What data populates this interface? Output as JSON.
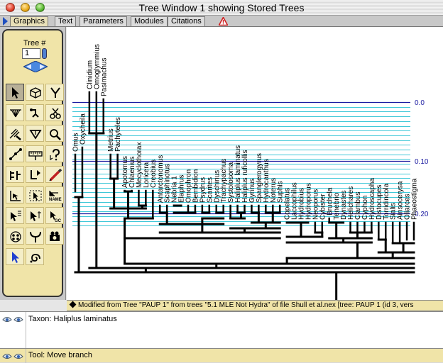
{
  "window": {
    "title": "Tree Window 1 showing Stored Trees"
  },
  "tabs": [
    {
      "label": "Graphics",
      "active": true
    },
    {
      "label": "Text",
      "active": false
    },
    {
      "label": "Parameters",
      "active": false
    },
    {
      "label": "Modules",
      "active": false
    },
    {
      "label": "Citations",
      "active": false
    }
  ],
  "palette": {
    "tree_number_label": "Tree #",
    "tree_number_value": "1",
    "tools": [
      "arrow-icon",
      "cube-icon",
      "fork-icon",
      "broom-icon",
      "reroot-icon",
      "scissors-icon",
      "brush-icon",
      "triangle-icon",
      "magnifier-icon",
      "nodes-icon",
      "ruler-icon",
      "query-icon",
      "ladder-icon",
      "flip-icon",
      "pencil-icon",
      "tree-arrow-icon",
      "selection-icon",
      "name-icon",
      "name-tag-icon",
      "pointer-cut-icon",
      "gc-icon",
      "cluster-icon",
      "branch-icon",
      "camera-icon",
      "cursor-blue-icon",
      "spiral-icon"
    ]
  },
  "scale": {
    "labels": [
      "0.0",
      "0.10",
      "0.20"
    ]
  },
  "taxa": [
    "Omus",
    "Oxycheila",
    "Clinidium",
    "Omoglymmius",
    "Pasimachus",
    "Metrius",
    "Pachyteles",
    "Apotomus",
    "Chlaenius",
    "Mecyclothorax",
    "Loricera",
    "Creobius",
    "Antarctonomus",
    "Scaphinotus",
    "Nebria 1",
    "Elaphrus",
    "Omophron",
    "Bembidion",
    "Psydrus",
    "Scarites",
    "Dyschirius",
    "Trachypachus",
    "Systolosoma",
    "Haliplus laminatus",
    "Haliplus ruficollis",
    "Gyrinus",
    "Spanglerogyrus",
    "Hydrocanthus",
    "Noterus",
    "Suphis",
    "Copelatus",
    "Laccophilus",
    "Hydrobius",
    "Hydroporus",
    "Neoporus",
    "Cybister",
    "Bruchela",
    "Tenebrio",
    "Dynastes",
    "Helichares",
    "Clambus",
    "Cyphon",
    "Hydroscapha",
    "Distocupes",
    "Torridincola",
    "Sialis",
    "Ainsocerysa",
    "Oliarces",
    "Phaeostigma"
  ],
  "info_bar": {
    "text": "Modified from Tree \"PAUP 1\" from trees \"5.1 MLE Not Hydra\" of file Shull et al.nex   [tree: PAUP 1 (id 3, vers"
  },
  "taxon_panel": {
    "text": "Taxon: Haliplus laminatus"
  },
  "tool_panel": {
    "text": "Tool: Move branch"
  },
  "colors": {
    "gridline": "#40c8d8",
    "scale_line": "#1a1aa0",
    "palette_bg": "#f0e4a8"
  }
}
